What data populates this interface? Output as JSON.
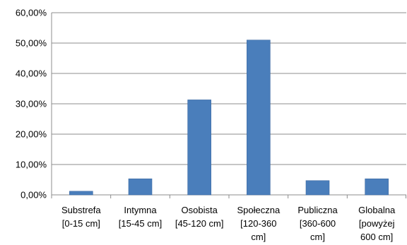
{
  "chart_data": {
    "type": "bar",
    "title": "",
    "xlabel": "",
    "ylabel": "",
    "ylim": [
      0,
      60
    ],
    "y_tick_values": [
      0,
      10,
      20,
      30,
      40,
      50,
      60
    ],
    "y_tick_labels": [
      "0,00%",
      "10,00%",
      "20,00%",
      "30,00%",
      "40,00%",
      "50,00%",
      "60,00%"
    ],
    "grid": "horizontal",
    "legend": "none",
    "bar_color": "#4a7ebb",
    "categories": [
      {
        "lines": [
          "Substrefa",
          "[0-15 cm]"
        ]
      },
      {
        "lines": [
          "Intymna",
          "[15-45 cm]"
        ]
      },
      {
        "lines": [
          "Osobista",
          "[45-120 cm]"
        ]
      },
      {
        "lines": [
          "Społeczna",
          "[120-360",
          "cm]"
        ]
      },
      {
        "lines": [
          "Publiczna",
          "[360-600",
          "cm]"
        ]
      },
      {
        "lines": [
          "Globalna",
          "[powyżej",
          "600 cm]"
        ]
      }
    ],
    "values": [
      1.2,
      5.3,
      31.3,
      51.0,
      4.7,
      5.3
    ]
  }
}
